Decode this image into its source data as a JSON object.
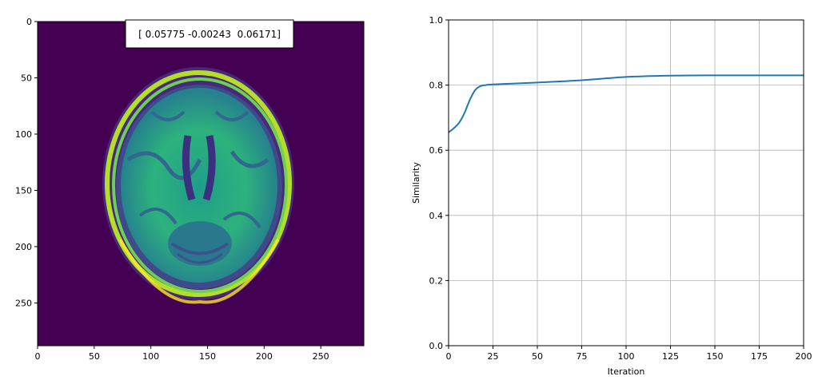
{
  "image_panel": {
    "x_ticks": [
      "0",
      "50",
      "100",
      "150",
      "200",
      "250"
    ],
    "y_ticks": [
      "0",
      "50",
      "100",
      "150",
      "200",
      "250"
    ],
    "annotation": "[ 0.05775 -0.00243  0.06171]",
    "colormap": {
      "background": "#440154",
      "mid": "#21918c",
      "high": "#fde725"
    }
  },
  "chart_data": {
    "type": "line",
    "xlabel": "Iteration",
    "ylabel": "Similarity",
    "xlim": [
      0,
      200
    ],
    "ylim": [
      0.0,
      1.0
    ],
    "x_ticks": [
      "0",
      "25",
      "50",
      "75",
      "100",
      "125",
      "150",
      "175",
      "200"
    ],
    "y_ticks": [
      "0.0",
      "0.2",
      "0.4",
      "0.6",
      "0.8",
      "1.0"
    ],
    "grid": true,
    "line_color": "#1f77b4",
    "series": [
      {
        "x": [
          0,
          3,
          6,
          9,
          12,
          15,
          18,
          21,
          25,
          50,
          75,
          100,
          125,
          150,
          175,
          200
        ],
        "y": [
          0.655,
          0.668,
          0.685,
          0.715,
          0.755,
          0.785,
          0.797,
          0.8,
          0.802,
          0.808,
          0.815,
          0.825,
          0.829,
          0.83,
          0.83,
          0.83
        ]
      }
    ]
  }
}
